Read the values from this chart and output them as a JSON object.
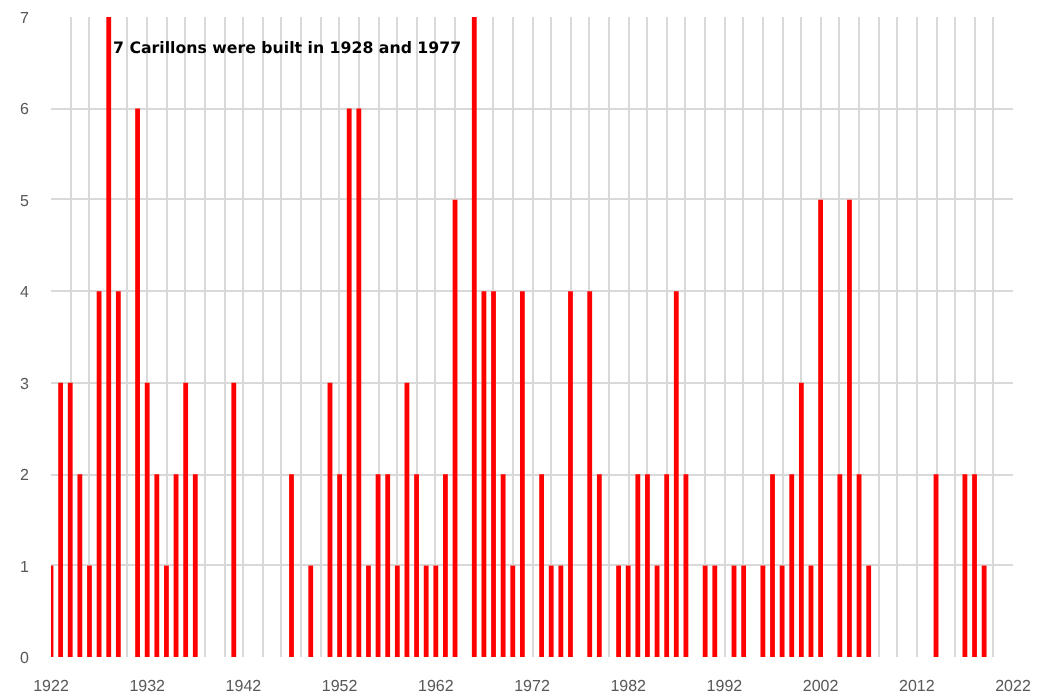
{
  "chart_data": {
    "type": "bar",
    "annotations": [
      "7 Carillons were built in 1928 and 1977"
    ],
    "x": [
      1922,
      1923,
      1924,
      1925,
      1926,
      1927,
      1928,
      1929,
      1931,
      1932,
      1933,
      1934,
      1935,
      1936,
      1937,
      1941,
      1947,
      1949,
      1951,
      1952,
      1953,
      1954,
      1955,
      1956,
      1957,
      1958,
      1959,
      1960,
      1961,
      1962,
      1963,
      1964,
      1966,
      1967,
      1968,
      1969,
      1970,
      1971,
      1973,
      1974,
      1975,
      1976,
      1978,
      1979,
      1981,
      1982,
      1983,
      1984,
      1985,
      1986,
      1987,
      1988,
      1990,
      1991,
      1993,
      1994,
      1996,
      1997,
      1998,
      1999,
      2000,
      2001,
      2002,
      2004,
      2005,
      2006,
      2007,
      2014,
      2017,
      2018,
      2019
    ],
    "values": [
      1,
      3,
      3,
      2,
      1,
      4,
      7,
      4,
      6,
      3,
      2,
      1,
      2,
      3,
      2,
      3,
      2,
      1,
      3,
      2,
      6,
      6,
      1,
      2,
      2,
      1,
      3,
      2,
      1,
      1,
      2,
      5,
      7,
      4,
      4,
      2,
      1,
      4,
      2,
      1,
      1,
      4,
      4,
      2,
      1,
      1,
      2,
      2,
      1,
      2,
      4,
      2,
      1,
      1,
      1,
      1,
      1,
      2,
      1,
      2,
      3,
      1,
      5,
      2,
      5,
      2,
      1,
      2,
      2,
      2,
      1
    ],
    "color": "#ff0000",
    "xlim": [
      1922,
      2022
    ],
    "ylim": [
      0,
      7
    ],
    "xticks": [
      1922,
      {
        "value": 1924,
        "label": null
      },
      {
        "value": 1926,
        "label": null
      },
      {
        "value": 1928,
        "label": null
      },
      {
        "value": 1930,
        "label": null
      },
      1932,
      {
        "value": 1934,
        "label": null
      },
      {
        "value": 1936,
        "label": null
      },
      {
        "value": 1938,
        "label": null
      },
      {
        "value": 1940,
        "label": null
      },
      1942,
      {
        "value": 1944,
        "label": null
      },
      {
        "value": 1946,
        "label": null
      },
      {
        "value": 1948,
        "label": null
      },
      {
        "value": 1950,
        "label": null
      },
      1952,
      {
        "value": 1954,
        "label": null
      },
      {
        "value": 1956,
        "label": null
      },
      {
        "value": 1958,
        "label": null
      },
      {
        "value": 1960,
        "label": null
      },
      1962,
      {
        "value": 1964,
        "label": null
      },
      {
        "value": 1966,
        "label": null
      },
      {
        "value": 1968,
        "label": null
      },
      {
        "value": 1970,
        "label": null
      },
      1972,
      {
        "value": 1974,
        "label": null
      },
      {
        "value": 1976,
        "label": null
      },
      {
        "value": 1978,
        "label": null
      },
      {
        "value": 1980,
        "label": null
      },
      1982,
      {
        "value": 1984,
        "label": null
      },
      {
        "value": 1986,
        "label": null
      },
      {
        "value": 1988,
        "label": null
      },
      {
        "value": 1990,
        "label": null
      },
      1992,
      {
        "value": 1994,
        "label": null
      },
      {
        "value": 1996,
        "label": null
      },
      {
        "value": 1998,
        "label": null
      },
      {
        "value": 2000,
        "label": null
      },
      2002,
      {
        "value": 2004,
        "label": null
      },
      {
        "value": 2006,
        "label": null
      },
      {
        "value": 2008,
        "label": null
      },
      {
        "value": 2010,
        "label": null
      },
      2012,
      {
        "value": 2014,
        "label": null
      },
      {
        "value": 2016,
        "label": null
      },
      {
        "value": 2018,
        "label": null
      },
      {
        "value": 2020,
        "label": null
      },
      2022
    ],
    "yticks": [
      0,
      1,
      2,
      3,
      4,
      5,
      6,
      7
    ],
    "grid": true
  }
}
